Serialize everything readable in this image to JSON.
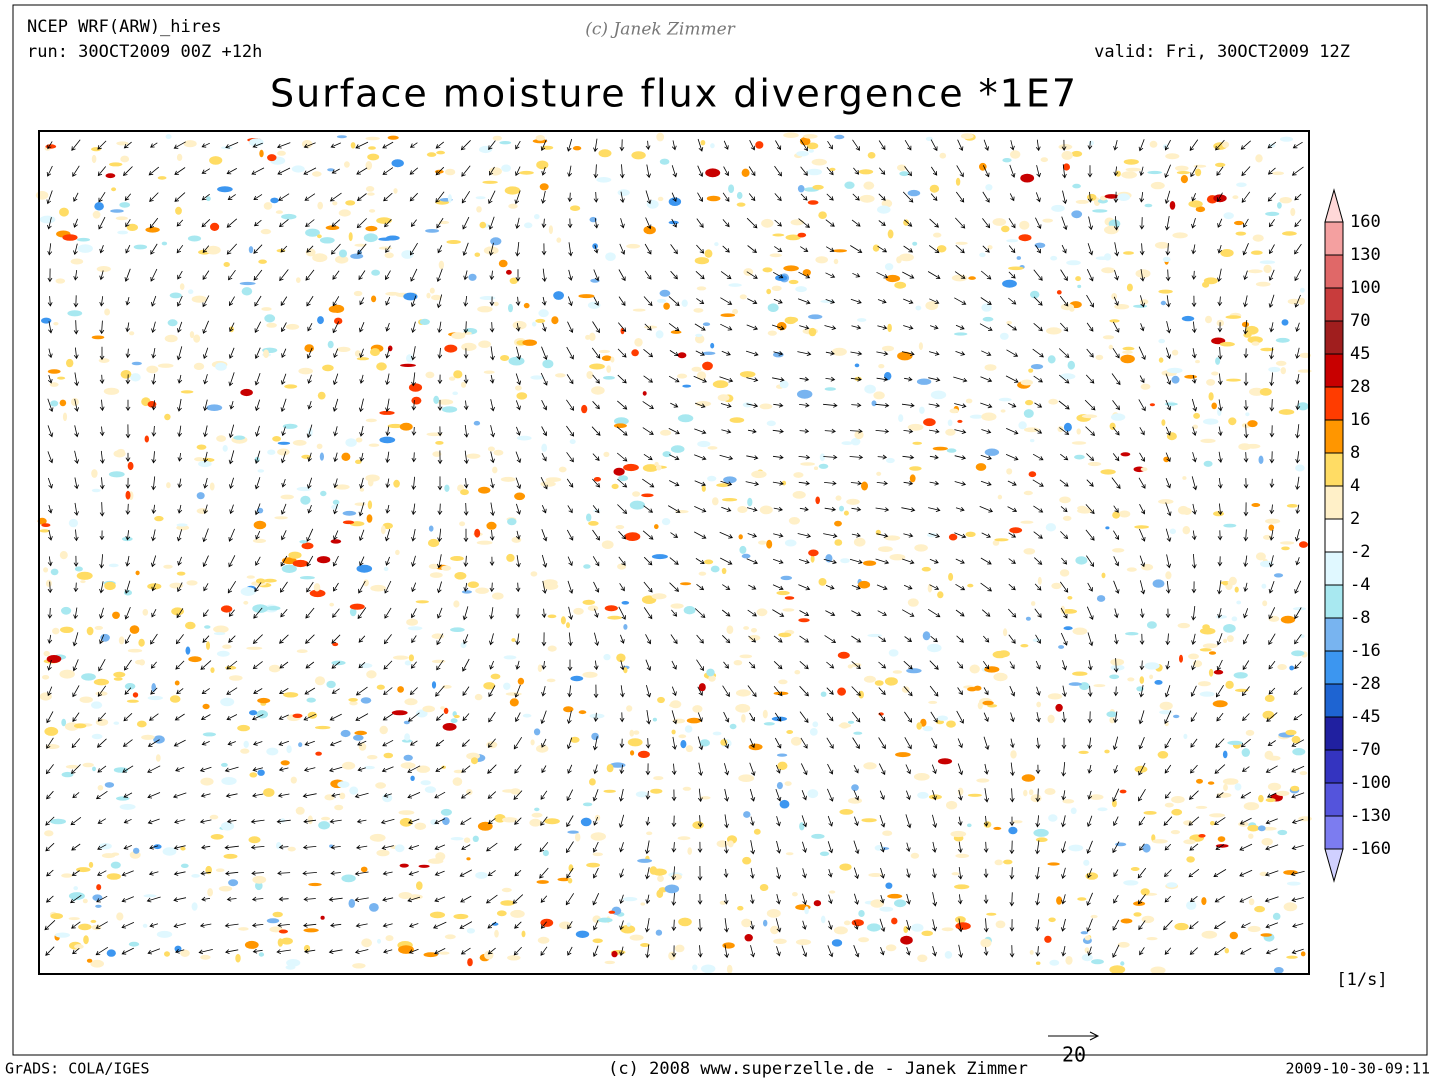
{
  "header": {
    "model": "NCEP WRF(ARW)_hires",
    "run": "run: 30OCT2009 00Z +12h",
    "copyright": "(c) Janek Zimmer",
    "valid": "valid: Fri, 30OCT2009 12Z",
    "title": "Surface moisture flux divergence *1E7"
  },
  "colorbar": {
    "levels": [
      160,
      130,
      100,
      70,
      45,
      28,
      16,
      8,
      4,
      2,
      -2,
      -4,
      -8,
      -16,
      -28,
      -45,
      -70,
      -100,
      -130,
      -160
    ],
    "colors": [
      "#ffd8d8",
      "#f4a0a0",
      "#e06868",
      "#c83c3c",
      "#a01e1e",
      "#c80000",
      "#ff3c00",
      "#ff9600",
      "#ffdc64",
      "#fff0c8",
      "#ffffff",
      "#e0f8ff",
      "#a8e8f0",
      "#78b4f0",
      "#3c96f0",
      "#1e64d2",
      "#2020a0",
      "#3434c0",
      "#5454dc",
      "#7c7cf0",
      "#d0d0ff"
    ],
    "unit": "[1/s]"
  },
  "vector_reference": "20",
  "footer": {
    "left": "GrADS: COLA/IGES",
    "center": "(c) 2008 www.superzelle.de - Janek Zimmer",
    "right": "2009-10-30-09:11"
  }
}
